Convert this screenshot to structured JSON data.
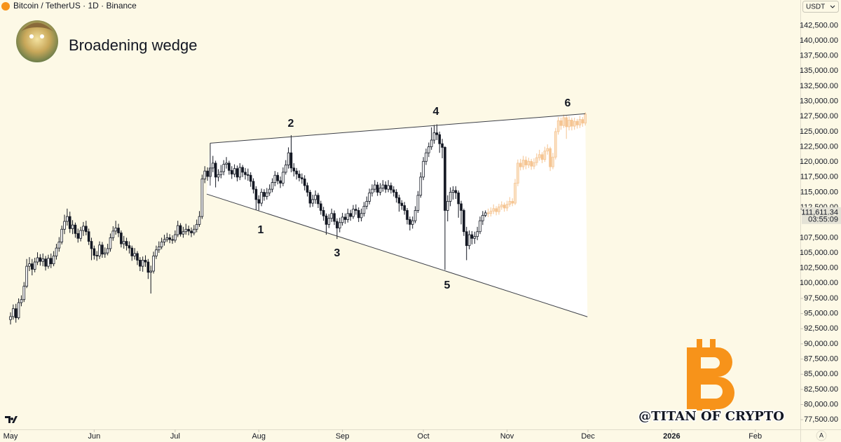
{
  "chart_data": {
    "type": "candlestick",
    "header": "Bitcoin / TetherUS · 1D · Binance",
    "currency": "USDT",
    "title": "Broadening wedge",
    "watermark": "@TITAN OF CRYPTO",
    "auto_scale": "A",
    "annotations": [
      "1",
      "2",
      "3",
      "4",
      "5",
      "6"
    ],
    "xlim": [
      -3.9,
      292.7
    ],
    "xticks": [
      {
        "value": 0,
        "label": "May"
      },
      {
        "value": 31,
        "label": "Jun"
      },
      {
        "value": 61,
        "label": "Jul"
      },
      {
        "value": 92,
        "label": "Aug"
      },
      {
        "value": 123,
        "label": "Sep"
      },
      {
        "value": 153,
        "label": "Oct"
      },
      {
        "value": 184,
        "label": "Nov"
      },
      {
        "value": 214,
        "label": "Dec"
      },
      {
        "value": 245,
        "label": "2026"
      },
      {
        "value": 276,
        "label": "Feb"
      }
    ],
    "ylim": [
      75900,
      146700
    ],
    "yticks": [
      {
        "value": 142500,
        "label": "142,500.00"
      },
      {
        "value": 140000,
        "label": "140,000.00"
      },
      {
        "value": 137500,
        "label": "137,500.00"
      },
      {
        "value": 135000,
        "label": "135,000.00"
      },
      {
        "value": 132500,
        "label": "132,500.00"
      },
      {
        "value": 130000,
        "label": "130,000.00"
      },
      {
        "value": 127500,
        "label": "127,500.00"
      },
      {
        "value": 125000,
        "label": "125,000.00"
      },
      {
        "value": 122500,
        "label": "122,500.00"
      },
      {
        "value": 120000,
        "label": "120,000.00"
      },
      {
        "value": 117500,
        "label": "117,500.00"
      },
      {
        "value": 115000,
        "label": "115,000.00"
      },
      {
        "value": 112500,
        "label": "112,500.00"
      },
      {
        "value": 107500,
        "label": "107,500.00"
      },
      {
        "value": 105000,
        "label": "105,000.00"
      },
      {
        "value": 102500,
        "label": "102,500.00"
      },
      {
        "value": 100000,
        "label": "100,000.00"
      },
      {
        "value": 97500,
        "label": "97,500.00"
      },
      {
        "value": 95000,
        "label": "95,000.00"
      },
      {
        "value": 92500,
        "label": "92,500.00"
      },
      {
        "value": 90000,
        "label": "90,000.00"
      },
      {
        "value": 87500,
        "label": "87,500.00"
      },
      {
        "value": 85000,
        "label": "85,000.00"
      },
      {
        "value": 82500,
        "label": "82,500.00"
      },
      {
        "value": 80000,
        "label": "80,000.00"
      },
      {
        "value": 77500,
        "label": "77,500.00"
      }
    ],
    "last_price": {
      "value": 111611.34,
      "label": "111,611.34"
    },
    "countdown": "03:55:09",
    "lines": [
      {
        "x": [
          74,
          213
        ],
        "y": [
          123100,
          127950
        ]
      },
      {
        "x": [
          72.7,
          213.8
        ],
        "y": [
          114700,
          94470
        ]
      },
      {
        "x": [
          74,
          74
        ],
        "y": [
          123100,
          116100
        ]
      }
    ],
    "series": [
      {
        "color": "#131722",
        "up_color": "#ffffff",
        "x0": 0,
        "open": [
          94000,
          94500,
          95800,
          94300,
          96800,
          97300,
          99500,
          102800,
          103200,
          102300,
          103500,
          104200,
          103600,
          104000,
          102800,
          104100,
          103200,
          104500,
          105800,
          106800,
          108900,
          110200,
          111000,
          109000,
          109600,
          108200,
          107400,
          108700,
          109400,
          108500,
          106900,
          105700,
          104600,
          104500,
          106300,
          104800,
          105000,
          105700,
          107500,
          108600,
          109100,
          108300,
          106500,
          106900,
          106200,
          105800,
          104500,
          104900,
          103800,
          102800,
          103800,
          103500,
          101800,
          102000,
          104500,
          105500,
          106000,
          106800,
          107200,
          107500,
          107200,
          107100,
          108000,
          109500,
          108100,
          108500,
          108900,
          108600,
          108300,
          108900,
          109700,
          111000,
          117200,
          118500,
          117600,
          119000,
          119800,
          117500,
          117900,
          118400,
          119600,
          119800,
          118600,
          118000,
          118900,
          117500,
          119100,
          118300,
          117900,
          117800,
          116800,
          115500,
          113800,
          113200,
          115000,
          114300,
          114900,
          115500,
          116600,
          117800,
          116900,
          116500,
          118300,
          119500,
          121500,
          119000,
          118500,
          118000,
          117400,
          117200,
          116100,
          115000,
          113200,
          113800,
          114500,
          113100,
          112000,
          111100,
          109700,
          110700,
          111500,
          110200,
          109100,
          110000,
          110900,
          110500,
          111500,
          111000,
          112200,
          112000,
          110800,
          111500,
          112700,
          113500,
          114900,
          115500,
          116200,
          115000,
          115700,
          116200,
          115500,
          116100,
          115400,
          115000,
          114100,
          113200,
          112800,
          112000,
          110500,
          109700,
          110300,
          112000,
          114500,
          117500,
          120100,
          121500,
          122500,
          123600,
          124800,
          124500,
          123000,
          122400,
          112000,
          113500,
          115000,
          115300,
          114900,
          113100,
          112000,
          108500,
          106200,
          108000,
          107400,
          107700,
          108500,
          110300,
          111200
        ],
        "high": [
          95200,
          96500,
          96600,
          97500,
          98000,
          100200,
          104000,
          104300,
          104000,
          104200,
          105100,
          104800,
          104900,
          104500,
          104700,
          104900,
          105300,
          106500,
          107600,
          109500,
          111300,
          112300,
          111800,
          110400,
          110000,
          109000,
          109300,
          110100,
          110300,
          109000,
          107500,
          106200,
          105300,
          106900,
          106800,
          105900,
          106500,
          108200,
          109400,
          110300,
          109800,
          108700,
          107800,
          107500,
          106900,
          106200,
          105800,
          105300,
          104300,
          104400,
          104600,
          104000,
          102900,
          105200,
          106200,
          106900,
          107500,
          108000,
          108300,
          108100,
          107900,
          108700,
          110300,
          109900,
          109300,
          109800,
          109500,
          109200,
          109600,
          110500,
          111900,
          117900,
          119300,
          119100,
          123100,
          121000,
          120200,
          118800,
          119500,
          120300,
          120800,
          120200,
          119300,
          119600,
          119400,
          119800,
          119500,
          119000,
          118900,
          118300,
          117300,
          116000,
          114500,
          115600,
          115500,
          115700,
          116300,
          117300,
          118500,
          118300,
          117600,
          119100,
          120300,
          122400,
          124400,
          119800,
          119000,
          118600,
          118100,
          117800,
          116600,
          115400,
          114600,
          115300,
          114900,
          113600,
          112600,
          111500,
          111400,
          112300,
          112000,
          110700,
          110800,
          111600,
          111500,
          112300,
          112100,
          112900,
          113000,
          112500,
          112300,
          113400,
          114300,
          115600,
          116300,
          117000,
          116700,
          116500,
          117000,
          116800,
          117000,
          116600,
          116000,
          115500,
          114600,
          113700,
          113400,
          112400,
          111000,
          111000,
          112700,
          115200,
          118300,
          120800,
          122200,
          123200,
          125700,
          126100,
          126200,
          125000,
          123800,
          122600,
          114500,
          115800,
          116000,
          116000,
          115300,
          113600,
          112300,
          109300,
          108700,
          108600,
          108500,
          109300,
          111000,
          111900,
          112000
        ],
        "low": [
          93200,
          94000,
          93500,
          94000,
          96200,
          96900,
          99200,
          102000,
          101300,
          101800,
          103000,
          102900,
          102800,
          102100,
          102400,
          102500,
          102800,
          103900,
          105200,
          106400,
          108100,
          109500,
          108300,
          108100,
          107500,
          106700,
          106900,
          107800,
          107900,
          106300,
          103800,
          103900,
          103700,
          104000,
          104200,
          104200,
          104600,
          105200,
          107000,
          108000,
          107600,
          105900,
          105700,
          105400,
          104900,
          103700,
          103900,
          103000,
          102000,
          101900,
          102700,
          100700,
          98300,
          101600,
          104000,
          105000,
          105600,
          106200,
          106800,
          106600,
          106500,
          106700,
          107600,
          107700,
          107500,
          108000,
          107900,
          107600,
          107900,
          108400,
          109300,
          110600,
          116500,
          116900,
          117200,
          118300,
          115800,
          116800,
          117300,
          117800,
          118900,
          117900,
          117200,
          117500,
          116800,
          117000,
          117500,
          117100,
          116900,
          115900,
          114800,
          112100,
          112000,
          112700,
          113600,
          113800,
          114400,
          115000,
          116000,
          116300,
          115700,
          116000,
          117900,
          118900,
          118300,
          117600,
          117100,
          116800,
          116400,
          115300,
          114300,
          112500,
          112600,
          113100,
          112400,
          111300,
          110300,
          108000,
          109100,
          110100,
          109600,
          107300,
          108400,
          109500,
          109800,
          110000,
          110300,
          110600,
          111300,
          110100,
          110200,
          111000,
          112200,
          113000,
          114300,
          115000,
          114400,
          114500,
          115100,
          114900,
          115000,
          114800,
          114300,
          113300,
          111800,
          112100,
          111300,
          109700,
          108700,
          109000,
          109900,
          111600,
          114100,
          117000,
          119500,
          120800,
          122000,
          123000,
          123600,
          121500,
          120600,
          102200,
          110200,
          112700,
          113800,
          113900,
          110800,
          109700,
          107800,
          103800,
          105600,
          106400,
          106500,
          107100,
          108100,
          109600,
          110900
        ],
        "close": [
          94500,
          95800,
          94300,
          96800,
          97300,
          99500,
          102800,
          103200,
          102300,
          103500,
          104200,
          103600,
          104000,
          102800,
          104100,
          103200,
          104500,
          105800,
          106800,
          108900,
          110200,
          111000,
          109000,
          109600,
          108200,
          107400,
          108700,
          109400,
          108500,
          106900,
          105700,
          104600,
          104500,
          106300,
          104800,
          105000,
          105700,
          107500,
          108600,
          109100,
          108300,
          106500,
          106900,
          106200,
          105800,
          104500,
          104900,
          103800,
          102800,
          103800,
          103500,
          101800,
          102000,
          104500,
          105500,
          106000,
          106800,
          107200,
          107500,
          107200,
          107100,
          108000,
          109500,
          108100,
          108500,
          108900,
          108600,
          108300,
          108900,
          109700,
          111000,
          117200,
          118500,
          117600,
          119000,
          119800,
          117500,
          117900,
          118400,
          119600,
          119800,
          118600,
          118000,
          118900,
          117500,
          119100,
          118300,
          117900,
          117800,
          116800,
          115500,
          113800,
          113200,
          115000,
          114300,
          114900,
          115500,
          116600,
          117800,
          116900,
          116500,
          118300,
          119500,
          121500,
          119000,
          118500,
          118000,
          117400,
          117200,
          116100,
          115000,
          113200,
          113800,
          114500,
          113100,
          112000,
          111100,
          109700,
          110700,
          111500,
          110200,
          109100,
          110000,
          110900,
          110500,
          111500,
          111000,
          112200,
          112000,
          110800,
          111500,
          112700,
          113500,
          114900,
          115500,
          116200,
          115000,
          115700,
          116200,
          115500,
          116100,
          115400,
          115000,
          114100,
          113200,
          112800,
          112000,
          110500,
          109700,
          110300,
          112000,
          114500,
          117500,
          120100,
          121500,
          122500,
          123600,
          124800,
          124500,
          123000,
          122400,
          112000,
          113500,
          115000,
          115300,
          114900,
          113100,
          112000,
          108500,
          106200,
          108000,
          107400,
          107700,
          108500,
          110300,
          111200,
          111600
        ]
      },
      {
        "color": "#f5c491",
        "up_color": "#fbe2c6",
        "x0": 177,
        "open": [
          111600,
          111500,
          111900,
          112300,
          111800,
          112600,
          112900,
          112400,
          113000,
          113500,
          113200,
          116500,
          119800,
          119200,
          120300,
          119500,
          120100,
          119300,
          119900,
          120700,
          121200,
          120400,
          121800,
          122200,
          119200,
          120800,
          125000,
          126800,
          126000,
          127300,
          125800,
          126900,
          125900,
          126700,
          126100,
          127000,
          126400
        ],
        "high": [
          112300,
          112500,
          113000,
          112700,
          113100,
          113500,
          113300,
          113600,
          114200,
          114000,
          117200,
          120400,
          120500,
          121000,
          120900,
          120700,
          120500,
          120600,
          121400,
          122000,
          121600,
          122500,
          122900,
          122500,
          121500,
          125600,
          127400,
          127300,
          127800,
          127600,
          127500,
          127300,
          127300,
          127100,
          127600,
          127400,
          128200
        ],
        "low": [
          110900,
          111000,
          111400,
          111200,
          111300,
          112100,
          111800,
          111900,
          112600,
          112700,
          112900,
          116000,
          118600,
          118700,
          118800,
          119000,
          118700,
          118800,
          119400,
          120200,
          119800,
          120000,
          121200,
          118500,
          118800,
          120400,
          124500,
          125300,
          125600,
          123800,
          125200,
          125200,
          125300,
          125500,
          125600,
          125800,
          126000
        ],
        "close": [
          111500,
          111900,
          112300,
          111800,
          112600,
          112900,
          112400,
          113000,
          113500,
          113200,
          116500,
          119800,
          119200,
          120300,
          119500,
          120100,
          119300,
          119900,
          120700,
          121200,
          120400,
          121800,
          122200,
          119200,
          120800,
          125000,
          126800,
          126000,
          127300,
          125800,
          126900,
          125900,
          126700,
          126100,
          127000,
          126400,
          127900
        ]
      }
    ]
  }
}
